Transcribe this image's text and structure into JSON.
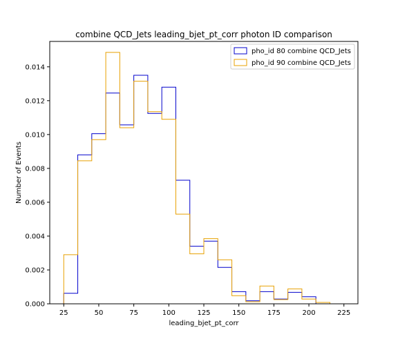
{
  "chart_data": {
    "type": "histogram-step",
    "title": "combine QCD_Jets leading_bjet_pt_corr photon ID comparison",
    "xlabel": "leading_bjet_pt_corr",
    "ylabel": "Number of Events",
    "xlim": [
      15,
      235
    ],
    "ylim": [
      0,
      0.0155
    ],
    "xticks": [
      25,
      50,
      75,
      100,
      125,
      150,
      175,
      200,
      225
    ],
    "yticks": [
      0.0,
      0.002,
      0.004,
      0.006,
      0.008,
      0.01,
      0.012,
      0.014
    ],
    "ytick_labels": [
      "0.000",
      "0.002",
      "0.004",
      "0.006",
      "0.008",
      "0.010",
      "0.012",
      "0.014"
    ],
    "bin_edges": [
      25,
      35,
      45,
      55,
      65,
      75,
      85,
      95,
      105,
      115,
      125,
      135,
      145,
      155,
      165,
      175,
      185,
      195,
      205,
      215
    ],
    "legend_position": "top-right",
    "series": [
      {
        "name": "pho_id 80 combine QCD_Jets",
        "color": "#0000cc",
        "values": [
          0.00062,
          0.0088,
          0.01005,
          0.01245,
          0.01057,
          0.0135,
          0.01125,
          0.0128,
          0.0073,
          0.0034,
          0.0037,
          0.00215,
          0.00072,
          0.00018,
          0.00072,
          0.00028,
          0.00068,
          0.00042,
          0.0
        ]
      },
      {
        "name": "pho_id 90 combine QCD_Jets",
        "color": "#e8a000",
        "values": [
          0.0029,
          0.00845,
          0.0097,
          0.01485,
          0.0104,
          0.01315,
          0.01135,
          0.0109,
          0.0053,
          0.00295,
          0.00385,
          0.0026,
          0.00048,
          0.00012,
          0.00105,
          0.00025,
          0.00088,
          0.00028,
          8e-05
        ]
      }
    ]
  }
}
